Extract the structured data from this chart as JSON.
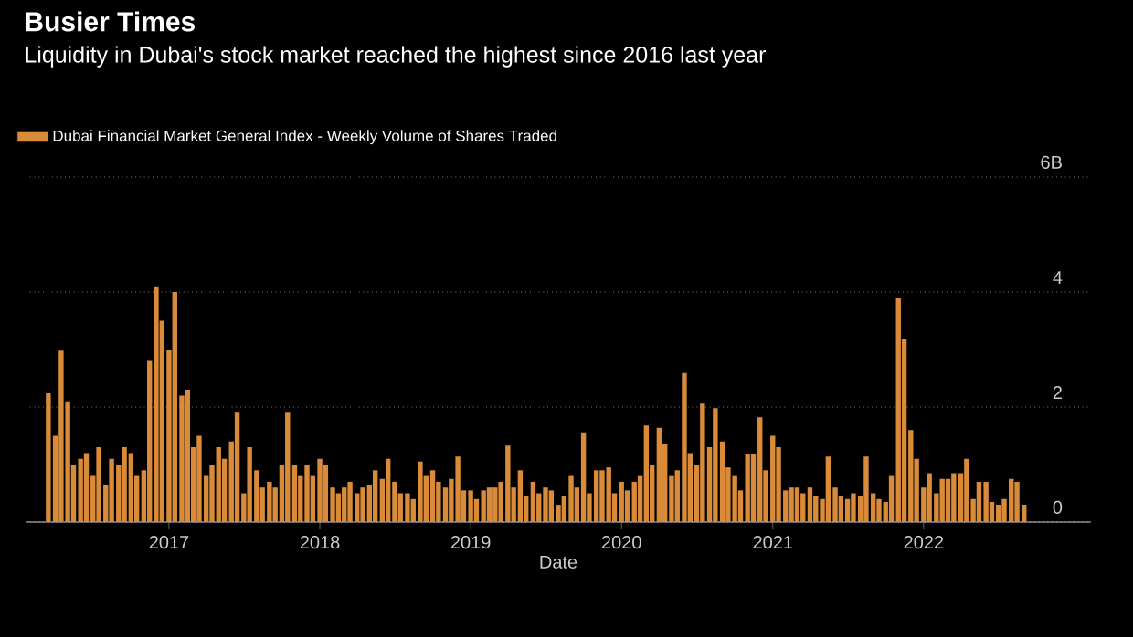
{
  "chart_data": {
    "type": "bar",
    "title": "Busier Times",
    "subtitle": "Liquidity in Dubai's stock market reached the highest since 2016 last year",
    "xlabel": "Date",
    "x": [
      "2016-03-15",
      "2016-04-01",
      "2016-04-15",
      "2016-05-01",
      "2016-05-15",
      "2016-06-01",
      "2016-06-15",
      "2016-07-01",
      "2016-07-15",
      "2016-08-01",
      "2016-08-15",
      "2016-09-01",
      "2016-09-15",
      "2016-10-01",
      "2016-10-15",
      "2016-11-01",
      "2016-11-15",
      "2016-12-01",
      "2016-12-15",
      "2017-01-01",
      "2017-01-15",
      "2017-02-01",
      "2017-02-15",
      "2017-03-01",
      "2017-03-15",
      "2017-04-01",
      "2017-04-15",
      "2017-05-01",
      "2017-05-15",
      "2017-06-01",
      "2017-06-15",
      "2017-07-01",
      "2017-07-15",
      "2017-08-01",
      "2017-08-15",
      "2017-09-01",
      "2017-09-15",
      "2017-10-01",
      "2017-10-15",
      "2017-11-01",
      "2017-11-15",
      "2017-12-01",
      "2017-12-15",
      "2018-01-01",
      "2018-01-15",
      "2018-02-01",
      "2018-02-15",
      "2018-03-01",
      "2018-03-15",
      "2018-04-01",
      "2018-04-15",
      "2018-05-01",
      "2018-05-15",
      "2018-06-01",
      "2018-06-15",
      "2018-07-01",
      "2018-07-15",
      "2018-08-01",
      "2018-08-15",
      "2018-09-01",
      "2018-09-15",
      "2018-10-01",
      "2018-10-15",
      "2018-11-01",
      "2018-11-15",
      "2018-12-01",
      "2018-12-15",
      "2019-01-01",
      "2019-01-15",
      "2019-02-01",
      "2019-02-15",
      "2019-03-01",
      "2019-03-15",
      "2019-04-01",
      "2019-04-15",
      "2019-05-01",
      "2019-05-15",
      "2019-06-01",
      "2019-06-15",
      "2019-07-01",
      "2019-07-15",
      "2019-08-01",
      "2019-08-15",
      "2019-09-01",
      "2019-09-15",
      "2019-10-01",
      "2019-10-15",
      "2019-11-01",
      "2019-11-15",
      "2019-12-01",
      "2019-12-15",
      "2020-01-01",
      "2020-01-15",
      "2020-02-01",
      "2020-02-15",
      "2020-03-01",
      "2020-03-15",
      "2020-04-01",
      "2020-04-15",
      "2020-05-01",
      "2020-05-15",
      "2020-06-01",
      "2020-06-15",
      "2020-07-01",
      "2020-07-15",
      "2020-08-01",
      "2020-08-15",
      "2020-09-01",
      "2020-09-15",
      "2020-10-01",
      "2020-10-15",
      "2020-11-01",
      "2020-11-15",
      "2020-12-01",
      "2020-12-15",
      "2021-01-01",
      "2021-01-15",
      "2021-02-01",
      "2021-02-15",
      "2021-03-01",
      "2021-03-15",
      "2021-04-01",
      "2021-04-15",
      "2021-05-01",
      "2021-05-15",
      "2021-06-01",
      "2021-06-15",
      "2021-07-01",
      "2021-07-15",
      "2021-08-01",
      "2021-08-15",
      "2021-09-01",
      "2021-09-15",
      "2021-10-01",
      "2021-10-15",
      "2021-11-01",
      "2021-11-15",
      "2021-12-01",
      "2021-12-15",
      "2022-01-01",
      "2022-01-15",
      "2022-02-01",
      "2022-02-15",
      "2022-03-01",
      "2022-03-15",
      "2022-04-01",
      "2022-04-15",
      "2022-05-01",
      "2022-05-15",
      "2022-06-01",
      "2022-06-15",
      "2022-07-01",
      "2022-07-15",
      "2022-08-01",
      "2022-08-15",
      "2022-09-01"
    ],
    "series": [
      {
        "name": "Dubai Financial Market General Index - Weekly Volume of Shares Traded",
        "color": "#d98b3a",
        "values": [
          2.24,
          1.5,
          2.98,
          2.1,
          1.0,
          1.1,
          1.2,
          0.8,
          1.3,
          0.65,
          1.1,
          1.0,
          1.3,
          1.2,
          0.8,
          0.9,
          2.8,
          4.1,
          3.5,
          3.0,
          4.0,
          2.2,
          2.3,
          1.3,
          1.5,
          0.8,
          1.0,
          1.3,
          1.1,
          1.4,
          1.9,
          0.5,
          1.3,
          0.9,
          0.6,
          0.7,
          0.6,
          1.0,
          1.9,
          1.0,
          0.8,
          1.0,
          0.8,
          1.1,
          1.0,
          0.6,
          0.5,
          0.6,
          0.7,
          0.5,
          0.6,
          0.65,
          0.9,
          0.75,
          1.1,
          0.7,
          0.5,
          0.5,
          0.4,
          1.05,
          0.8,
          0.9,
          0.7,
          0.6,
          0.75,
          1.14,
          0.55,
          0.55,
          0.4,
          0.55,
          0.6,
          0.6,
          0.7,
          1.33,
          0.6,
          0.9,
          0.45,
          0.7,
          0.5,
          0.6,
          0.55,
          0.3,
          0.45,
          0.8,
          0.6,
          1.56,
          0.5,
          0.9,
          0.9,
          0.95,
          0.5,
          0.7,
          0.55,
          0.7,
          0.8,
          1.68,
          1.0,
          1.64,
          1.35,
          0.8,
          0.9,
          2.59,
          1.2,
          1.0,
          2.06,
          1.3,
          1.98,
          1.4,
          0.95,
          0.8,
          0.55,
          1.19,
          1.19,
          1.82,
          0.9,
          1.5,
          1.3,
          0.55,
          0.6,
          0.6,
          0.5,
          0.6,
          0.45,
          0.4,
          1.14,
          0.6,
          0.45,
          0.4,
          0.5,
          0.45,
          1.14,
          0.5,
          0.4,
          0.35,
          0.8,
          3.9,
          3.19,
          1.6,
          1.1,
          0.6,
          0.85,
          0.5,
          0.75,
          0.75,
          0.85,
          0.85,
          1.1,
          0.4,
          0.7,
          0.7,
          0.35,
          0.3,
          0.4,
          0.75,
          0.7,
          0.3
        ]
      }
    ],
    "xlim": [
      "2016-01-20",
      "2023-02-10"
    ],
    "xticks": [
      {
        "value": "2017-01-01",
        "label": "2017"
      },
      {
        "value": "2018-01-01",
        "label": "2018"
      },
      {
        "value": "2019-01-01",
        "label": "2019"
      },
      {
        "value": "2020-01-01",
        "label": "2020"
      },
      {
        "value": "2021-01-01",
        "label": "2021"
      },
      {
        "value": "2022-01-01",
        "label": "2022"
      }
    ],
    "ylim": [
      0,
      6
    ],
    "yticks": [
      0,
      2,
      4,
      {
        "value": 6,
        "label": "6B"
      }
    ],
    "grid": "y",
    "legend": "top left"
  }
}
